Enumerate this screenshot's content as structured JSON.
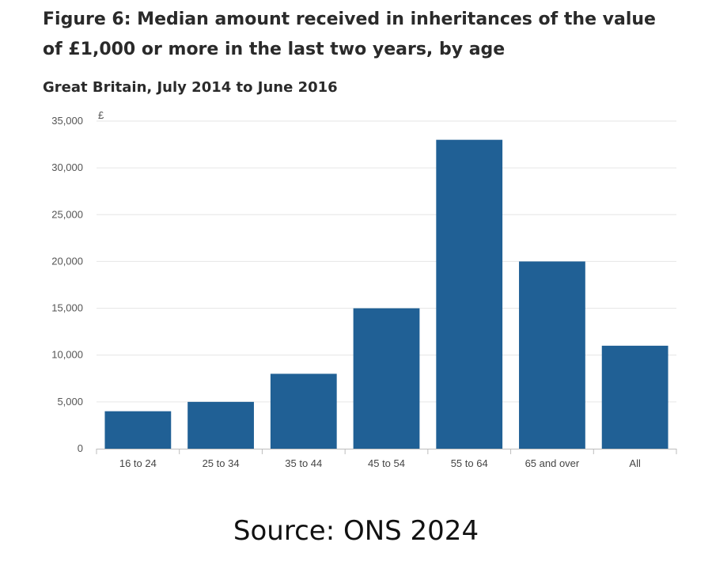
{
  "title": "Figure 6: Median amount received in inheritances of the value of £1,000 or more in the last two years, by age",
  "subtitle": "Great Britain, July 2014 to June 2016",
  "source": "Source: ONS 2024",
  "chart_data": {
    "type": "bar",
    "title": "Figure 6: Median amount received in inheritances of the value of £1,000 or more in the last two years, by age",
    "subtitle": "Great Britain, July 2014 to June 2016",
    "ylabel": "£",
    "xlabel": "",
    "categories": [
      "16 to 24",
      "25 to 34",
      "35 to 44",
      "45 to 54",
      "55 to 64",
      "65 and over",
      "All"
    ],
    "values": [
      4000,
      5000,
      8000,
      15000,
      33000,
      20000,
      11000
    ],
    "ylim": [
      0,
      35000
    ],
    "yticks": [
      0,
      5000,
      10000,
      15000,
      20000,
      25000,
      30000,
      35000
    ],
    "ytick_labels": [
      "0",
      "5,000",
      "10,000",
      "15,000",
      "20,000",
      "25,000",
      "30,000",
      "35,000"
    ],
    "grid": true,
    "bar_color": "#206095",
    "grid_color": "#e6e6e6",
    "axis_color": "#bdbdbd"
  }
}
